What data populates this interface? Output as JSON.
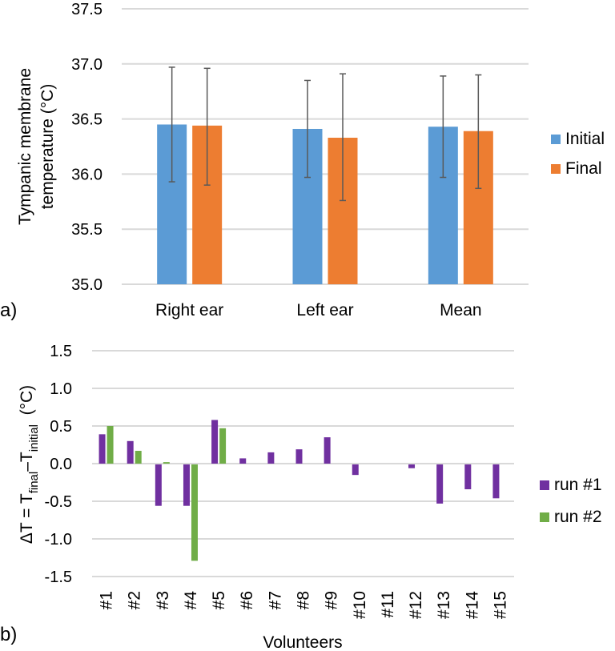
{
  "chart_data": [
    {
      "id": "a",
      "type": "bar",
      "panel_label": "a)",
      "title": "",
      "ylabel_lines": [
        "Tympanic membrane",
        "temperature (°C)"
      ],
      "xlabel": "",
      "ylim": [
        35.0,
        37.5
      ],
      "yticks": [
        35.0,
        35.5,
        36.0,
        36.5,
        37.0,
        37.5
      ],
      "ytick_labels": [
        "35.0",
        "35.5",
        "36.0",
        "36.5",
        "37.0",
        "37.5"
      ],
      "grid": true,
      "legend_position": "right",
      "categories": [
        "Right ear",
        "Left ear",
        "Mean"
      ],
      "series": [
        {
          "name": "Initial",
          "color": "#5b9bd5",
          "values": [
            36.45,
            36.41,
            36.43
          ],
          "error_upper": [
            36.97,
            36.85,
            36.89
          ],
          "error_lower": [
            35.93,
            35.97,
            35.97
          ]
        },
        {
          "name": "Final",
          "color": "#ed7d31",
          "values": [
            36.44,
            36.33,
            36.39
          ],
          "error_upper": [
            36.96,
            36.91,
            36.9
          ],
          "error_lower": [
            35.9,
            35.76,
            35.87
          ]
        }
      ]
    },
    {
      "id": "b",
      "type": "bar",
      "panel_label": "b)",
      "title": "",
      "ylabel_parts": {
        "prefix": "ΔT = T",
        "sub1": "final",
        "mid": "–T",
        "sub2": "initial",
        "suffix": "  (°C)"
      },
      "xlabel": "Volunteers",
      "ylim": [
        -1.5,
        1.5
      ],
      "yticks": [
        -1.5,
        -1.0,
        -0.5,
        0.0,
        0.5,
        1.0,
        1.5
      ],
      "ytick_labels": [
        "-1.5",
        "-1.0",
        "-0.5",
        "0.0",
        "0.5",
        "1.0",
        "1.5"
      ],
      "grid": true,
      "legend_position": "right",
      "categories": [
        "#1",
        "#2",
        "#3",
        "#4",
        "#5",
        "#6",
        "#7",
        "#8",
        "#9",
        "#10",
        "#11",
        "#12",
        "#13",
        "#14",
        "#15"
      ],
      "series": [
        {
          "name": "run #1",
          "color": "#7030a0",
          "values": [
            0.39,
            0.3,
            -0.55,
            -0.55,
            0.58,
            0.07,
            0.15,
            0.19,
            0.35,
            -0.14,
            0.0,
            -0.05,
            -0.52,
            -0.33,
            -0.45
          ]
        },
        {
          "name": "run #2",
          "color": "#70ad47",
          "values": [
            0.5,
            0.17,
            0.02,
            -1.28,
            0.47,
            null,
            null,
            null,
            null,
            null,
            null,
            null,
            null,
            null,
            null
          ]
        }
      ]
    }
  ]
}
